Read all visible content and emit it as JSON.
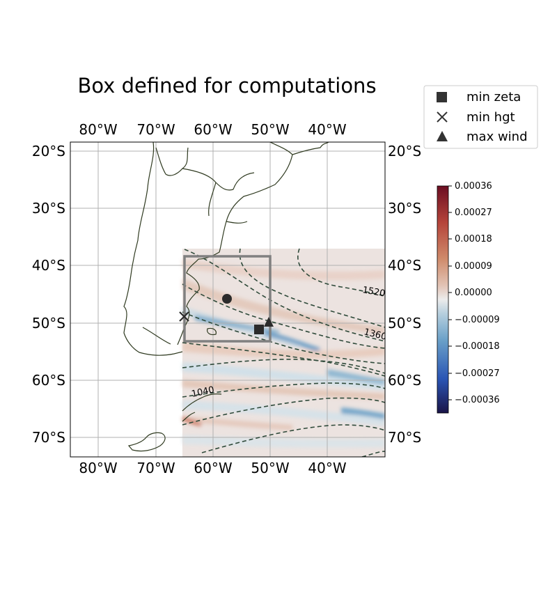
{
  "title": "Box defined for computations",
  "map": {
    "lon_ticks": [
      "80°W",
      "70°W",
      "60°W",
      "50°W",
      "40°W"
    ],
    "lat_ticks": [
      "20°S",
      "30°S",
      "40°S",
      "50°S",
      "60°S",
      "70°S"
    ],
    "extent": {
      "lon": [
        -85,
        -30
      ],
      "lat": [
        -18,
        -73
      ]
    },
    "grid": true,
    "computation_box": {
      "lon": [
        -65,
        -50
      ],
      "lat": [
        -38,
        -53
      ]
    },
    "contour_labels": [
      "1520",
      "1360",
      "1040"
    ]
  },
  "legend": {
    "placement": "top-right",
    "items": [
      {
        "label": "min zeta",
        "marker": "square"
      },
      {
        "label": "min hgt",
        "marker": "x"
      },
      {
        "label": "max wind",
        "marker": "triangle"
      }
    ]
  },
  "points": [
    {
      "name": "min zeta",
      "lon": -52.5,
      "lat": -51.0
    },
    {
      "name": "min hgt",
      "lon": -65.0,
      "lat": -48.5
    },
    {
      "name": "max wind",
      "lon": -50.5,
      "lat": -49.5
    },
    {
      "name": "center",
      "lon": -57.5,
      "lat": -45.7
    }
  ],
  "colorbar": {
    "ticks": [
      "0.00036",
      "0.00027",
      "0.00018",
      "0.00009",
      "0.00000",
      "−0.00009",
      "−0.00018",
      "−0.00027",
      "−0.00036"
    ],
    "min": -0.00036,
    "max": 0.00036,
    "colors": [
      "#1a1447",
      "#2a55b4",
      "#6aa0c8",
      "#b8d0de",
      "#ececec",
      "#e2c4b6",
      "#cf8a6a",
      "#b5443a",
      "#6b0e22"
    ]
  }
}
